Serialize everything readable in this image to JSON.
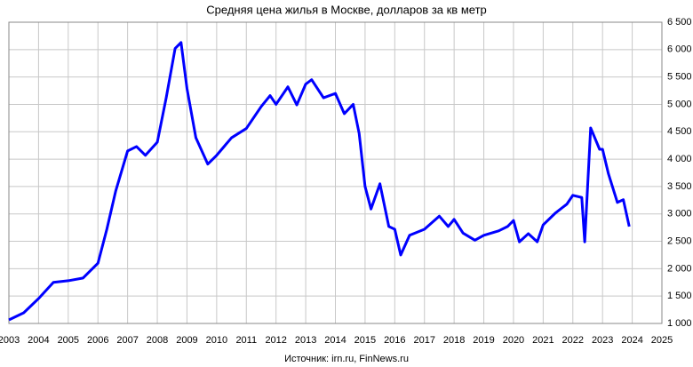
{
  "chart_data": {
    "type": "line",
    "title": "Средняя цена жилья в Москве, долларов за кв метр",
    "source": "Источник: irn.ru, FinNews.ru",
    "x": [
      2003.0,
      2003.5,
      2004.0,
      2004.5,
      2005.0,
      2005.5,
      2006.0,
      2006.3,
      2006.6,
      2007.0,
      2007.3,
      2007.6,
      2008.0,
      2008.3,
      2008.6,
      2008.8,
      2009.0,
      2009.3,
      2009.7,
      2010.0,
      2010.5,
      2011.0,
      2011.5,
      2011.8,
      2012.0,
      2012.4,
      2012.7,
      2013.0,
      2013.2,
      2013.6,
      2014.0,
      2014.3,
      2014.6,
      2014.8,
      2015.0,
      2015.2,
      2015.5,
      2015.8,
      2016.0,
      2016.2,
      2016.5,
      2017.0,
      2017.5,
      2017.8,
      2018.0,
      2018.3,
      2018.7,
      2019.0,
      2019.5,
      2019.8,
      2020.0,
      2020.2,
      2020.5,
      2020.8,
      2021.0,
      2021.4,
      2021.8,
      2022.0,
      2022.3,
      2022.4,
      2022.6,
      2022.9,
      2023.0,
      2023.2,
      2023.5,
      2023.7,
      2023.9
    ],
    "series": [
      {
        "name": "Средняя цена",
        "color": "#0000ff",
        "values": [
          1065,
          1195,
          1455,
          1750,
          1780,
          1830,
          2100,
          2720,
          3420,
          4150,
          4230,
          4070,
          4310,
          5120,
          6020,
          6130,
          5290,
          4390,
          3910,
          4070,
          4390,
          4560,
          4960,
          5160,
          5000,
          5320,
          4990,
          5370,
          5450,
          5120,
          5200,
          4830,
          5000,
          4470,
          3500,
          3090,
          3550,
          2770,
          2720,
          2250,
          2610,
          2720,
          2960,
          2770,
          2900,
          2650,
          2520,
          2610,
          2690,
          2770,
          2880,
          2490,
          2640,
          2490,
          2800,
          3010,
          3180,
          3340,
          3300,
          2490,
          4570,
          4180,
          4180,
          3730,
          3210,
          3260,
          2770
        ]
      }
    ],
    "xlim": [
      2003,
      2025
    ],
    "xticks": [
      2003,
      2004,
      2005,
      2006,
      2007,
      2008,
      2009,
      2010,
      2011,
      2012,
      2013,
      2014,
      2015,
      2016,
      2017,
      2018,
      2019,
      2020,
      2021,
      2022,
      2023,
      2024,
      2025
    ],
    "ylim": [
      1000,
      6500
    ],
    "yticks": [
      {
        "value": 1000,
        "label": "1 000"
      },
      {
        "value": 1500,
        "label": "1 500"
      },
      {
        "value": 2000,
        "label": "2 000"
      },
      {
        "value": 2500,
        "label": "2 500"
      },
      {
        "value": 3000,
        "label": "3 000"
      },
      {
        "value": 3500,
        "label": "3 500"
      },
      {
        "value": 4000,
        "label": "4 000"
      },
      {
        "value": 4500,
        "label": "4 500"
      },
      {
        "value": 5000,
        "label": "5 000"
      },
      {
        "value": 5500,
        "label": "5 500"
      },
      {
        "value": 6000,
        "label": "6 000"
      },
      {
        "value": 6500,
        "label": "6 500"
      }
    ],
    "grid": true
  }
}
